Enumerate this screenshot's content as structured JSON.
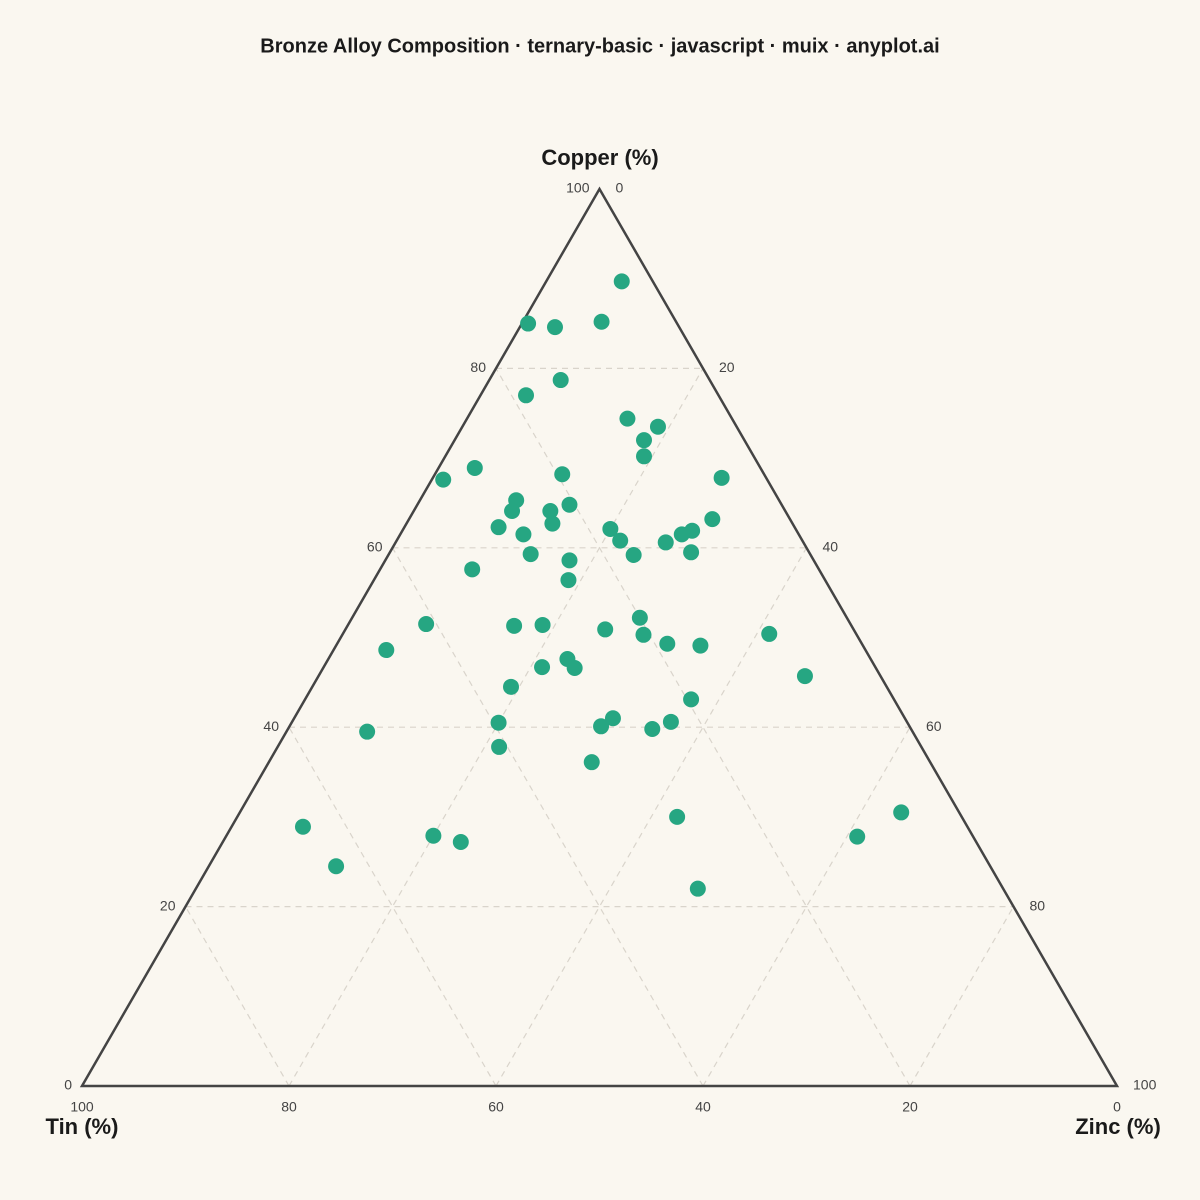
{
  "chart_data": {
    "type": "ternary",
    "title": "Bronze Alloy Composition · ternary-basic · javascript · muix · anyplot.ai",
    "axes": {
      "top": "Copper (%)",
      "left": "Tin (%)",
      "right": "Zinc (%)"
    },
    "ticks": [
      0,
      20,
      40,
      60,
      80,
      100
    ],
    "grid": true,
    "color": "#26a682",
    "copper": [
      89.7,
      85.0,
      84.6,
      85.2,
      78.7,
      77.0,
      74.4,
      73.5,
      72.0,
      70.2,
      68.9,
      67.6,
      68.2,
      67.8,
      65.3,
      64.1,
      64.1,
      64.8,
      62.7,
      62.3,
      61.5,
      63.2,
      62.1,
      60.8,
      61.9,
      61.5,
      60.6,
      59.3,
      59.2,
      59.5,
      58.6,
      57.6,
      56.4,
      52.2,
      51.5,
      51.3,
      51.4,
      50.9,
      50.3,
      50.4,
      49.3,
      49.1,
      48.6,
      47.6,
      46.7,
      46.6,
      45.7,
      44.5,
      43.1,
      41.0,
      40.5,
      40.1,
      40.6,
      39.8,
      39.5,
      37.8,
      36.1,
      30.5,
      30.0,
      28.9,
      27.9,
      27.8,
      27.2,
      24.5,
      22.0
    ],
    "tin": [
      3.0,
      14.4,
      12.0,
      7.2,
      14.4,
      18.6,
      10.1,
      7.6,
      9.7,
      10.6,
      27.6,
      31.3,
      19.5,
      4.3,
      25.4,
      26.4,
      22.7,
      20.5,
      23.2,
      28.6,
      26.6,
      7.5,
      17.9,
      17.6,
      10.1,
      11.3,
      13.3,
      27.0,
      17.1,
      11.4,
      23.6,
      33.5,
      24.8,
      20.0,
      41.0,
      32.6,
      29.8,
      24.0,
      20.6,
      8.4,
      18.8,
      15.7,
      46.3,
      29.3,
      32.2,
      29.1,
      7.3,
      36.3,
      19.6,
      28.2,
      39.5,
      29.8,
      22.8,
      25.0,
      52.7,
      40.8,
      32.7,
      5.6,
      27.5,
      64.2,
      52.1,
      11.2,
      49.8,
      63.2,
      29.5
    ],
    "zinc": [
      7.3,
      0.6,
      3.4,
      7.6,
      6.9,
      4.4,
      15.5,
      18.9,
      18.3,
      19.2,
      3.5,
      1.1,
      12.3,
      27.9,
      9.3,
      9.5,
      13.2,
      14.7,
      14.1,
      9.1,
      11.9,
      29.3,
      20.0,
      21.6,
      28.0,
      27.2,
      26.1,
      13.7,
      23.7,
      29.1,
      17.8,
      8.9,
      18.8,
      27.8,
      7.5,
      16.1,
      18.8,
      25.1,
      29.1,
      41.2,
      31.9,
      35.2,
      5.1,
      23.1,
      21.1,
      24.3,
      47.0,
      19.2,
      37.3,
      30.8,
      20.0,
      30.1,
      36.6,
      35.2,
      7.8,
      21.4,
      31.2,
      63.9,
      42.5,
      6.9,
      20.0,
      61.0,
      23.0,
      12.3,
      48.5
    ]
  }
}
